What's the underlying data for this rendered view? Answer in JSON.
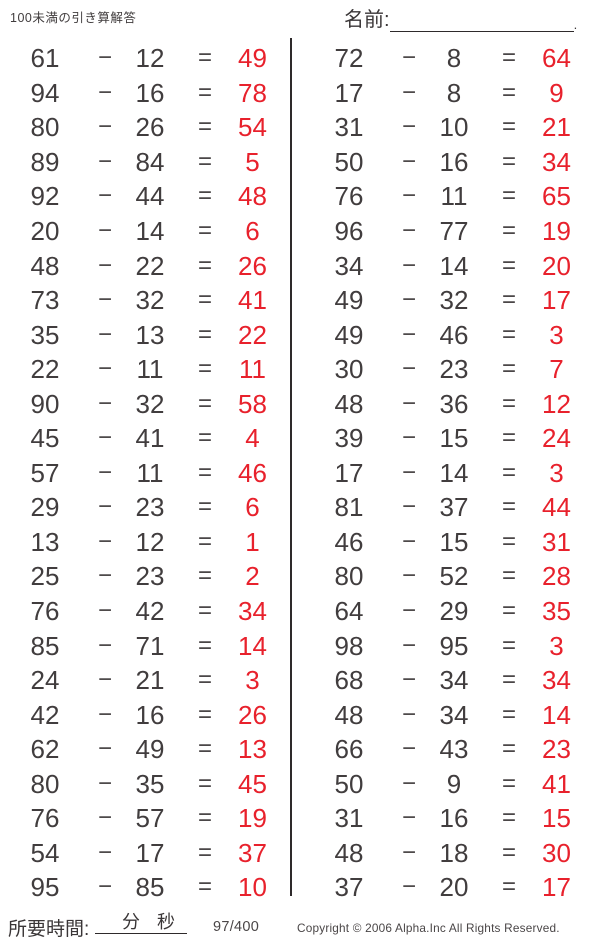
{
  "page": {
    "title": "100未満の引き算解答",
    "name_label": "名前:",
    "name_suffix": ".",
    "footer": {
      "time_label": "所要時間:",
      "minutes_label": "分",
      "seconds_label": "秒",
      "page_number": "97/400",
      "copyright": "Copyright © 2006 Alpha.Inc All Rights Reserved."
    },
    "colors": {
      "answer_red": "#e8212c",
      "text_dark": "#413d3e",
      "line_dark": "#2e2a2b"
    }
  },
  "problems": {
    "operator": "−",
    "equals": "=",
    "left": [
      {
        "a": 61,
        "b": 12,
        "ans": 49
      },
      {
        "a": 94,
        "b": 16,
        "ans": 78
      },
      {
        "a": 80,
        "b": 26,
        "ans": 54
      },
      {
        "a": 89,
        "b": 84,
        "ans": 5
      },
      {
        "a": 92,
        "b": 44,
        "ans": 48
      },
      {
        "a": 20,
        "b": 14,
        "ans": 6
      },
      {
        "a": 48,
        "b": 22,
        "ans": 26
      },
      {
        "a": 73,
        "b": 32,
        "ans": 41
      },
      {
        "a": 35,
        "b": 13,
        "ans": 22
      },
      {
        "a": 22,
        "b": 11,
        "ans": 11
      },
      {
        "a": 90,
        "b": 32,
        "ans": 58
      },
      {
        "a": 45,
        "b": 41,
        "ans": 4
      },
      {
        "a": 57,
        "b": 11,
        "ans": 46
      },
      {
        "a": 29,
        "b": 23,
        "ans": 6
      },
      {
        "a": 13,
        "b": 12,
        "ans": 1
      },
      {
        "a": 25,
        "b": 23,
        "ans": 2
      },
      {
        "a": 76,
        "b": 42,
        "ans": 34
      },
      {
        "a": 85,
        "b": 71,
        "ans": 14
      },
      {
        "a": 24,
        "b": 21,
        "ans": 3
      },
      {
        "a": 42,
        "b": 16,
        "ans": 26
      },
      {
        "a": 62,
        "b": 49,
        "ans": 13
      },
      {
        "a": 80,
        "b": 35,
        "ans": 45
      },
      {
        "a": 76,
        "b": 57,
        "ans": 19
      },
      {
        "a": 54,
        "b": 17,
        "ans": 37
      },
      {
        "a": 95,
        "b": 85,
        "ans": 10
      }
    ],
    "right": [
      {
        "a": 72,
        "b": 8,
        "ans": 64
      },
      {
        "a": 17,
        "b": 8,
        "ans": 9
      },
      {
        "a": 31,
        "b": 10,
        "ans": 21
      },
      {
        "a": 50,
        "b": 16,
        "ans": 34
      },
      {
        "a": 76,
        "b": 11,
        "ans": 65
      },
      {
        "a": 96,
        "b": 77,
        "ans": 19
      },
      {
        "a": 34,
        "b": 14,
        "ans": 20
      },
      {
        "a": 49,
        "b": 32,
        "ans": 17
      },
      {
        "a": 49,
        "b": 46,
        "ans": 3
      },
      {
        "a": 30,
        "b": 23,
        "ans": 7
      },
      {
        "a": 48,
        "b": 36,
        "ans": 12
      },
      {
        "a": 39,
        "b": 15,
        "ans": 24
      },
      {
        "a": 17,
        "b": 14,
        "ans": 3
      },
      {
        "a": 81,
        "b": 37,
        "ans": 44
      },
      {
        "a": 46,
        "b": 15,
        "ans": 31
      },
      {
        "a": 80,
        "b": 52,
        "ans": 28
      },
      {
        "a": 64,
        "b": 29,
        "ans": 35
      },
      {
        "a": 98,
        "b": 95,
        "ans": 3
      },
      {
        "a": 68,
        "b": 34,
        "ans": 34
      },
      {
        "a": 48,
        "b": 34,
        "ans": 14
      },
      {
        "a": 66,
        "b": 43,
        "ans": 23
      },
      {
        "a": 50,
        "b": 9,
        "ans": 41
      },
      {
        "a": 31,
        "b": 16,
        "ans": 15
      },
      {
        "a": 48,
        "b": 18,
        "ans": 30
      },
      {
        "a": 37,
        "b": 20,
        "ans": 17
      }
    ]
  }
}
